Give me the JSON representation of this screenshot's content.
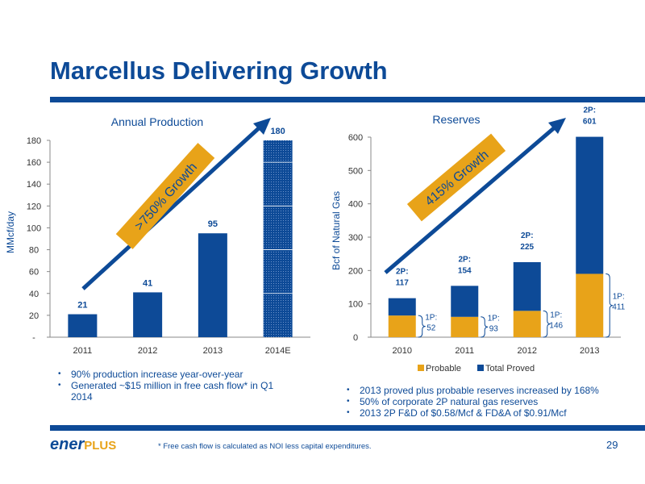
{
  "title": "Marcellus Delivering Growth",
  "colors": {
    "brand_blue": "#0d4a97",
    "gold": "#e8a319",
    "text": "#333333"
  },
  "chart_data": [
    {
      "type": "bar",
      "title": "Annual Production",
      "ylabel": "MMcf/day",
      "categories": [
        "2011",
        "2012",
        "2013",
        "2014E"
      ],
      "values": [
        21,
        41,
        95,
        180
      ],
      "value_labels": [
        "21",
        "41",
        "95",
        "180"
      ],
      "estimated_category": "2014E",
      "ylim": [
        0,
        180
      ],
      "yticks": [
        0,
        20,
        40,
        60,
        80,
        100,
        120,
        140,
        160,
        180
      ],
      "ytick_labels": [
        "-",
        "20",
        "40",
        "60",
        "80",
        "100",
        "120",
        "140",
        "160",
        "180"
      ],
      "annotation": ">750% Growth"
    },
    {
      "type": "bar",
      "stacked": true,
      "title": "Reserves",
      "ylabel": "Bcf of Natural Gas",
      "categories": [
        "2010",
        "2011",
        "2012",
        "2013"
      ],
      "series": [
        {
          "name": "Probable",
          "values": [
            65,
            61,
            79,
            190
          ],
          "color": "#e8a319"
        },
        {
          "name": "Total Proved",
          "values": [
            52,
            93,
            146,
            411
          ],
          "color": "#0d4a97"
        }
      ],
      "top_labels": [
        "2P:\n117",
        "2P:\n154",
        "2P:\n225",
        "2P:\n601"
      ],
      "side_labels": [
        "1P:\n52",
        "1P:\n93",
        "1P:\n146",
        "1P:\n411"
      ],
      "ylim": [
        0,
        600
      ],
      "yticks": [
        0,
        100,
        200,
        300,
        400,
        500,
        600
      ],
      "legend_position": "bottom",
      "annotation": "415% Growth"
    }
  ],
  "left_bullets": [
    "90% production increase year-over-year",
    "Generated ~$15 million in free cash flow* in Q1 2014"
  ],
  "right_bullets": [
    "2013 proved plus probable reserves increased by 168%",
    "50% of corporate 2P natural gas reserves",
    "2013 2P F&D of $0.58/Mcf & FD&A of $0.91/Mcf"
  ],
  "footer": {
    "logo_ener": "ener",
    "logo_plus": "PLUS",
    "footnote": "* Free cash flow is calculated as NOI less capital expenditures.",
    "page_number": "29"
  }
}
